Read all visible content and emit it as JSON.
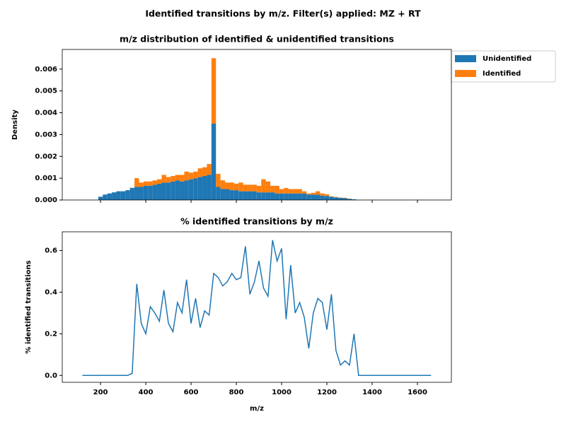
{
  "title": "Identified transitions by m/z. Filter(s) applied: MZ + RT",
  "chart_data": [
    {
      "type": "histogram",
      "title": "m/z distribution of identified & unidentified transitions",
      "ylabel": "Density",
      "stacked": true,
      "legend": "outside upper right",
      "bins": [
        110,
        130,
        150,
        170,
        190,
        210,
        230,
        250,
        270,
        290,
        310,
        330,
        350,
        370,
        390,
        410,
        430,
        450,
        470,
        490,
        510,
        530,
        550,
        570,
        590,
        610,
        630,
        650,
        670,
        690,
        710,
        730,
        750,
        770,
        790,
        810,
        830,
        850,
        870,
        890,
        910,
        930,
        950,
        970,
        990,
        1010,
        1030,
        1050,
        1070,
        1090,
        1110,
        1130,
        1150,
        1170,
        1190,
        1210,
        1230,
        1250,
        1270,
        1290,
        1310,
        1330,
        1350,
        1370,
        1390,
        1410,
        1430,
        1450,
        1470,
        1490,
        1510,
        1530,
        1550,
        1570,
        1590,
        1610,
        1630,
        1650,
        1670
      ],
      "series": [
        {
          "name": "Unidentified",
          "color": "#1f77b4",
          "values": [
            0,
            0,
            0,
            0,
            0.00015,
            0.00025,
            0.0003,
            0.00035,
            0.0004,
            0.0004,
            0.00045,
            0.00055,
            0.0006,
            0.0006,
            0.00065,
            0.00065,
            0.0007,
            0.00075,
            0.0008,
            0.0008,
            0.00085,
            0.0009,
            0.00085,
            0.0009,
            0.00095,
            0.001,
            0.00105,
            0.0011,
            0.00115,
            0.0035,
            0.0006,
            0.0005,
            0.0005,
            0.00045,
            0.00045,
            0.0004,
            0.0004,
            0.0004,
            0.0004,
            0.00035,
            0.00035,
            0.00035,
            0.00035,
            0.0003,
            0.0003,
            0.0003,
            0.0003,
            0.0003,
            0.0003,
            0.0003,
            0.00025,
            0.00025,
            0.00025,
            0.0002,
            0.00018,
            0.00015,
            0.00012,
            0.0001,
            8e-05,
            5e-05,
            3e-05,
            0,
            0,
            0,
            0,
            0,
            0,
            0,
            0,
            0,
            0,
            0,
            0,
            0,
            0,
            0,
            0,
            0
          ]
        },
        {
          "name": "Identified",
          "color": "#ff7f0e",
          "values": [
            0,
            0,
            0,
            0,
            0,
            0,
            0,
            0,
            0,
            0,
            0,
            1e-05,
            0.0004,
            0.0002,
            0.0002,
            0.0002,
            0.0002,
            0.0002,
            0.00035,
            0.00025,
            0.00025,
            0.00025,
            0.0003,
            0.0004,
            0.0003,
            0.0003,
            0.0004,
            0.0004,
            0.0005,
            0.003,
            0.0006,
            0.0004,
            0.0003,
            0.00035,
            0.0003,
            0.0004,
            0.0003,
            0.0003,
            0.0003,
            0.0003,
            0.0006,
            0.0005,
            0.0003,
            0.00035,
            0.0002,
            0.00025,
            0.0002,
            0.0002,
            0.0002,
            0.0001,
            5e-05,
            8e-05,
            0.00015,
            0.0001,
            8e-05,
            2e-05,
            2e-05,
            1e-05,
            2e-05,
            1e-05,
            0,
            0,
            0,
            0,
            0,
            0,
            0,
            0,
            0,
            0,
            0,
            0,
            0,
            0,
            0,
            0,
            0,
            0
          ]
        }
      ],
      "xlim": [
        31,
        1750
      ],
      "xticks": [
        200,
        400,
        600,
        800,
        1000,
        1200,
        1400,
        1600
      ],
      "ylim": [
        0,
        0.0069
      ],
      "yticks": [
        {
          "value": 0,
          "label": "0.000"
        },
        {
          "value": 0.001,
          "label": "0.001"
        },
        {
          "value": 0.002,
          "label": "0.002"
        },
        {
          "value": 0.003,
          "label": "0.003"
        },
        {
          "value": 0.004,
          "label": "0.004"
        },
        {
          "value": 0.005,
          "label": "0.005"
        },
        {
          "value": 0.006,
          "label": "0.006"
        }
      ]
    },
    {
      "type": "line",
      "title": "% identified transitions by m/z",
      "xlabel": "m/z",
      "ylabel": "% identified transitions",
      "x": [
        120,
        140,
        160,
        180,
        200,
        220,
        240,
        260,
        280,
        300,
        320,
        340,
        360,
        380,
        400,
        420,
        440,
        460,
        480,
        500,
        520,
        540,
        560,
        580,
        600,
        620,
        640,
        660,
        680,
        700,
        720,
        740,
        760,
        780,
        800,
        820,
        840,
        860,
        880,
        900,
        920,
        940,
        960,
        980,
        1000,
        1020,
        1040,
        1060,
        1080,
        1100,
        1120,
        1140,
        1160,
        1180,
        1200,
        1220,
        1240,
        1260,
        1280,
        1300,
        1320,
        1340,
        1360,
        1380,
        1400,
        1420,
        1440,
        1460,
        1480,
        1500,
        1520,
        1540,
        1560,
        1580,
        1600,
        1620,
        1640,
        1660
      ],
      "series": [
        {
          "color": "#1f77b4",
          "values": [
            0,
            0,
            0,
            0,
            0,
            0,
            0,
            0,
            0,
            0,
            0,
            0.01,
            0.44,
            0.25,
            0.2,
            0.33,
            0.3,
            0.26,
            0.41,
            0.25,
            0.21,
            0.35,
            0.3,
            0.46,
            0.25,
            0.37,
            0.23,
            0.31,
            0.29,
            0.49,
            0.47,
            0.43,
            0.45,
            0.49,
            0.46,
            0.47,
            0.62,
            0.39,
            0.45,
            0.55,
            0.42,
            0.38,
            0.65,
            0.55,
            0.61,
            0.27,
            0.53,
            0.3,
            0.35,
            0.28,
            0.13,
            0.3,
            0.37,
            0.35,
            0.22,
            0.39,
            0.12,
            0.05,
            0.07,
            0.05,
            0.2,
            0,
            0,
            0,
            0,
            0,
            0,
            0,
            0,
            0,
            0,
            0,
            0,
            0,
            0,
            0,
            0,
            0
          ]
        }
      ],
      "xlim": [
        31,
        1750
      ],
      "xticks": [
        200,
        400,
        600,
        800,
        1000,
        1200,
        1400,
        1600
      ],
      "ylim": [
        -0.033,
        0.69
      ],
      "yticks": [
        {
          "value": 0,
          "label": "0.0"
        },
        0.2,
        0.4,
        0.6
      ]
    }
  ]
}
